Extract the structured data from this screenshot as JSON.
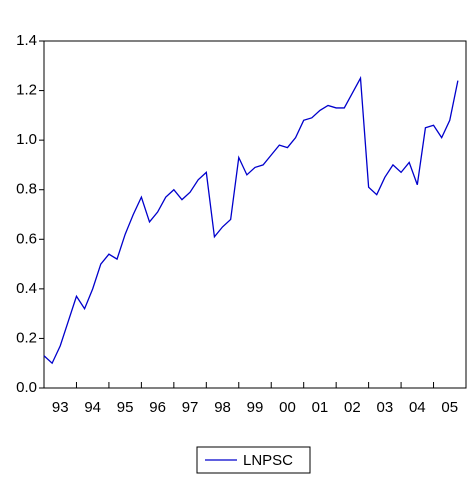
{
  "chart_data": {
    "type": "line",
    "categories": [
      "93",
      null,
      null,
      null,
      "94",
      null,
      null,
      null,
      "95",
      null,
      null,
      null,
      "96",
      null,
      null,
      null,
      "97",
      null,
      null,
      null,
      "98",
      null,
      null,
      null,
      "99",
      null,
      null,
      null,
      "00",
      null,
      null,
      null,
      "01",
      null,
      null,
      null,
      "02",
      null,
      null,
      null,
      "03",
      null,
      null,
      null,
      "04",
      null,
      null,
      null,
      "05",
      null,
      null,
      null
    ],
    "series": [
      {
        "name": "LNPSC",
        "color": "#0000cc",
        "values": [
          0.13,
          0.1,
          0.17,
          0.27,
          0.37,
          0.32,
          0.4,
          0.5,
          0.54,
          0.52,
          0.62,
          0.7,
          0.77,
          0.67,
          0.71,
          0.77,
          0.8,
          0.76,
          0.79,
          0.84,
          0.87,
          0.61,
          0.65,
          0.68,
          0.93,
          0.86,
          0.89,
          0.9,
          0.94,
          0.98,
          0.97,
          1.01,
          1.08,
          1.09,
          1.12,
          1.14,
          1.13,
          1.13,
          1.19,
          1.25,
          0.81,
          0.78,
          0.85,
          0.9,
          0.87,
          0.91,
          0.82,
          1.05,
          1.06,
          1.01,
          1.08,
          1.24
        ]
      }
    ],
    "ylim": [
      0,
      1.4
    ],
    "yticks": [
      {
        "value": 0,
        "label": "0.0"
      },
      0.2,
      0.4,
      0.6,
      0.8,
      {
        "value": 1,
        "label": "1.0"
      },
      1.2,
      1.4
    ],
    "grid": false,
    "legend": "bottom"
  }
}
